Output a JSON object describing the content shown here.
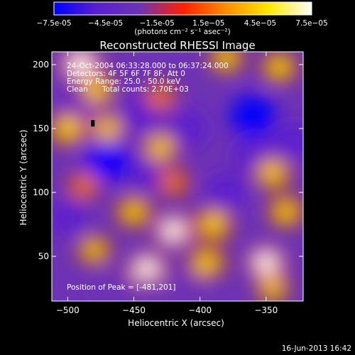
{
  "chart_data": {
    "type": "heatmap",
    "title": "Reconstructed RHESSI Image",
    "colorbar": {
      "min": -7.5e-05,
      "max": 7.5e-05,
      "tick_labels": [
        "-7.5e-05",
        "-4.5e-05",
        "-1.5e-05",
        "1.5e-05",
        "4.5e-05",
        "7.5e-05"
      ],
      "unit_label": "(photons cm⁻² s⁻¹ asec⁻²)",
      "colormap": [
        "#0000ff",
        "#5a1fd0",
        "#6d33b4",
        "#ff2000",
        "#ff8c00",
        "#ffe800",
        "#ffffff"
      ]
    },
    "xlabel": "Heliocentric X (arcsec)",
    "ylabel": "Heliocentric Y (arcsec)",
    "xlim": [
      -512,
      -322
    ],
    "ylim": [
      15,
      210
    ],
    "x_ticks": [
      {
        "value": -500,
        "label": "−500"
      },
      {
        "value": -450,
        "label": "−450"
      },
      {
        "value": -400,
        "label": "−400"
      },
      {
        "value": -350,
        "label": "−350"
      }
    ],
    "y_ticks": [
      {
        "value": 50,
        "label": "50"
      },
      {
        "value": 100,
        "label": "100"
      },
      {
        "value": 150,
        "label": "150"
      },
      {
        "value": 200,
        "label": "200"
      }
    ],
    "annotations": [
      "24-Oct-2004 06:33:28.000 to 06:37:24.000",
      "Detectors: 4F 5F 6F 7F 8F, Att 0",
      "Energy Range: 25.0 - 50.0 keV",
      "Clean      Total counts: 2.70E+03"
    ],
    "peak_label": "Position of Peak = [-481,201]",
    "peak": {
      "x": -481,
      "y": 201
    },
    "hot_spots": [
      {
        "x": -490,
        "y": 200,
        "v": 7.5e-05
      },
      {
        "x": -478,
        "y": 180,
        "v": 5e-05
      },
      {
        "x": -500,
        "y": 150,
        "v": 6e-05
      },
      {
        "x": -470,
        "y": 150,
        "v": 4.5e-05
      },
      {
        "x": -488,
        "y": 105,
        "v": 3.5e-05
      },
      {
        "x": -430,
        "y": 175,
        "v": 3.5e-05
      },
      {
        "x": -430,
        "y": 135,
        "v": 5e-05
      },
      {
        "x": -420,
        "y": 108,
        "v": 3.5e-05
      },
      {
        "x": -380,
        "y": 205,
        "v": 4.5e-05
      },
      {
        "x": -340,
        "y": 198,
        "v": 5e-05
      },
      {
        "x": -345,
        "y": 115,
        "v": 5.5e-05
      },
      {
        "x": -335,
        "y": 85,
        "v": 5e-05
      },
      {
        "x": -450,
        "y": 85,
        "v": 5e-05
      },
      {
        "x": -420,
        "y": 70,
        "v": 6.5e-05
      },
      {
        "x": -390,
        "y": 75,
        "v": 6e-05
      },
      {
        "x": -395,
        "y": 45,
        "v": 5.5e-05
      },
      {
        "x": -350,
        "y": 45,
        "v": 6.5e-05
      },
      {
        "x": -440,
        "y": 40,
        "v": 6.5e-05
      },
      {
        "x": -480,
        "y": 55,
        "v": 4e-05
      },
      {
        "x": -345,
        "y": 25,
        "v": 4e-05
      }
    ],
    "cold_spots": [
      {
        "x": -490,
        "y": 165,
        "v": -4e-05
      },
      {
        "x": -445,
        "y": 160,
        "v": -6e-05
      },
      {
        "x": -410,
        "y": 150,
        "v": -5e-05
      },
      {
        "x": -360,
        "y": 160,
        "v": -6.5e-05
      },
      {
        "x": -360,
        "y": 130,
        "v": -4.5e-05
      },
      {
        "x": -470,
        "y": 125,
        "v": -6.5e-05
      },
      {
        "x": -440,
        "y": 115,
        "v": -4e-05
      },
      {
        "x": -380,
        "y": 100,
        "v": -5e-05
      },
      {
        "x": -330,
        "y": 140,
        "v": -4.5e-05
      },
      {
        "x": -500,
        "y": 80,
        "v": -4e-05
      },
      {
        "x": -465,
        "y": 25,
        "v": -3.5e-05
      },
      {
        "x": -410,
        "y": 25,
        "v": -3e-05
      }
    ]
  },
  "footer": {
    "timestamp": "16-Jun-2013 16:42"
  }
}
